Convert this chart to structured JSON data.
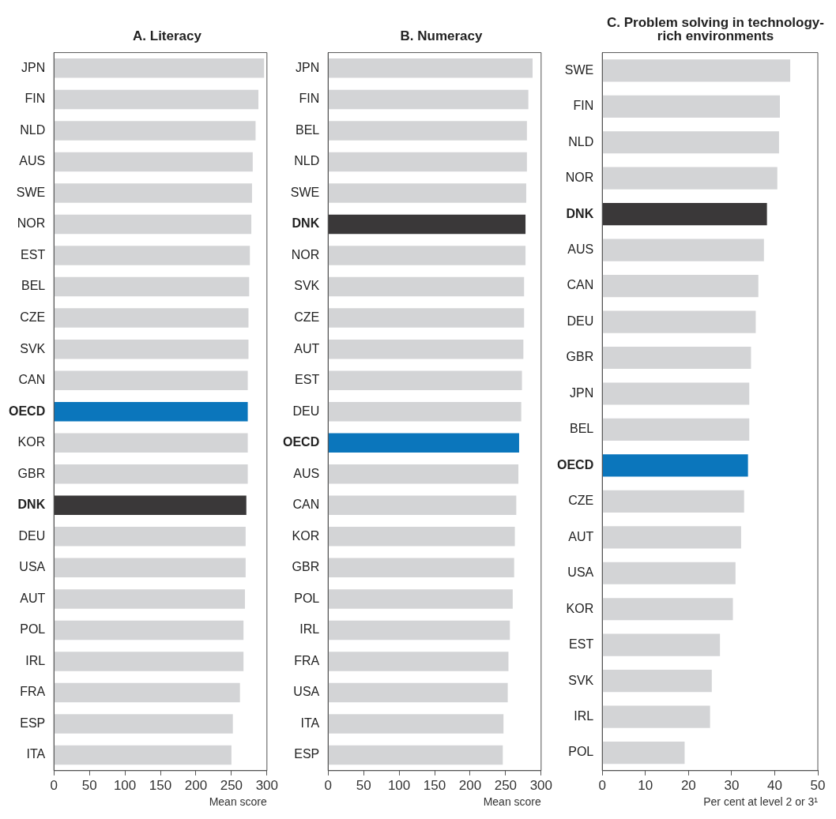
{
  "chart_data": [
    {
      "type": "bar",
      "orientation": "horizontal",
      "title": "A. Literacy",
      "xlabel": "Mean score",
      "grid": false,
      "categories": [
        "JPN",
        "FIN",
        "NLD",
        "AUS",
        "SWE",
        "NOR",
        "EST",
        "BEL",
        "CZE",
        "SVK",
        "CAN",
        "OECD",
        "KOR",
        "GBR",
        "DNK",
        "DEU",
        "USA",
        "AUT",
        "POL",
        "IRL",
        "FRA",
        "ESP",
        "ITA"
      ],
      "values": [
        296,
        288,
        284,
        280,
        279,
        278,
        276,
        275,
        274,
        274,
        273,
        273,
        273,
        273,
        271,
        270,
        270,
        269,
        267,
        267,
        262,
        252,
        250
      ],
      "colors": [
        "#d3d4d6",
        "#d3d4d6",
        "#d3d4d6",
        "#d3d4d6",
        "#d3d4d6",
        "#d3d4d6",
        "#d3d4d6",
        "#d3d4d6",
        "#d3d4d6",
        "#d3d4d6",
        "#d3d4d6",
        "#0b76bc",
        "#d3d4d6",
        "#d3d4d6",
        "#3a3839",
        "#d3d4d6",
        "#d3d4d6",
        "#d3d4d6",
        "#d3d4d6",
        "#d3d4d6",
        "#d3d4d6",
        "#d3d4d6",
        "#d3d4d6"
      ],
      "xlim": [
        0,
        300
      ],
      "xticks": [
        0,
        50,
        100,
        150,
        200,
        250,
        300
      ]
    },
    {
      "type": "bar",
      "orientation": "horizontal",
      "title": "B. Numeracy",
      "xlabel": "Mean score",
      "grid": false,
      "categories": [
        "JPN",
        "FIN",
        "BEL",
        "NLD",
        "SWE",
        "DNK",
        "NOR",
        "SVK",
        "CZE",
        "AUT",
        "EST",
        "DEU",
        "OECD",
        "AUS",
        "CAN",
        "KOR",
        "GBR",
        "POL",
        "IRL",
        "FRA",
        "USA",
        "ITA",
        "ESP"
      ],
      "values": [
        288,
        282,
        280,
        280,
        279,
        278,
        278,
        276,
        276,
        275,
        273,
        272,
        269,
        268,
        265,
        263,
        262,
        260,
        256,
        254,
        253,
        247,
        246
      ],
      "colors": [
        "#d3d4d6",
        "#d3d4d6",
        "#d3d4d6",
        "#d3d4d6",
        "#d3d4d6",
        "#3a3839",
        "#d3d4d6",
        "#d3d4d6",
        "#d3d4d6",
        "#d3d4d6",
        "#d3d4d6",
        "#d3d4d6",
        "#0b76bc",
        "#d3d4d6",
        "#d3d4d6",
        "#d3d4d6",
        "#d3d4d6",
        "#d3d4d6",
        "#d3d4d6",
        "#d3d4d6",
        "#d3d4d6",
        "#d3d4d6",
        "#d3d4d6"
      ],
      "xlim": [
        0,
        300
      ],
      "xticks": [
        0,
        50,
        100,
        150,
        200,
        250,
        300
      ]
    },
    {
      "type": "bar",
      "orientation": "horizontal",
      "title": "C. Problem solving in technology-rich environments",
      "xlabel": "Per cent at level 2 or 3¹",
      "grid": false,
      "categories": [
        "SWE",
        "FIN",
        "NLD",
        "NOR",
        "DNK",
        "AUS",
        "CAN",
        "DEU",
        "GBR",
        "JPN",
        "BEL",
        "OECD",
        "CZE",
        "AUT",
        "USA",
        "KOR",
        "EST",
        "SVK",
        "IRL",
        "POL"
      ],
      "values": [
        43.6,
        41.2,
        41.0,
        40.6,
        38.2,
        37.5,
        36.2,
        35.6,
        34.5,
        34.1,
        34.1,
        33.8,
        32.9,
        32.2,
        30.9,
        30.3,
        27.3,
        25.4,
        25.0,
        19.1
      ],
      "colors": [
        "#d3d4d6",
        "#d3d4d6",
        "#d3d4d6",
        "#d3d4d6",
        "#3a3839",
        "#d3d4d6",
        "#d3d4d6",
        "#d3d4d6",
        "#d3d4d6",
        "#d3d4d6",
        "#d3d4d6",
        "#0b76bc",
        "#d3d4d6",
        "#d3d4d6",
        "#d3d4d6",
        "#d3d4d6",
        "#d3d4d6",
        "#d3d4d6",
        "#d3d4d6",
        "#d3d4d6"
      ],
      "xlim": [
        0,
        50
      ],
      "xticks": [
        0,
        10,
        20,
        30,
        40,
        50
      ]
    }
  ]
}
